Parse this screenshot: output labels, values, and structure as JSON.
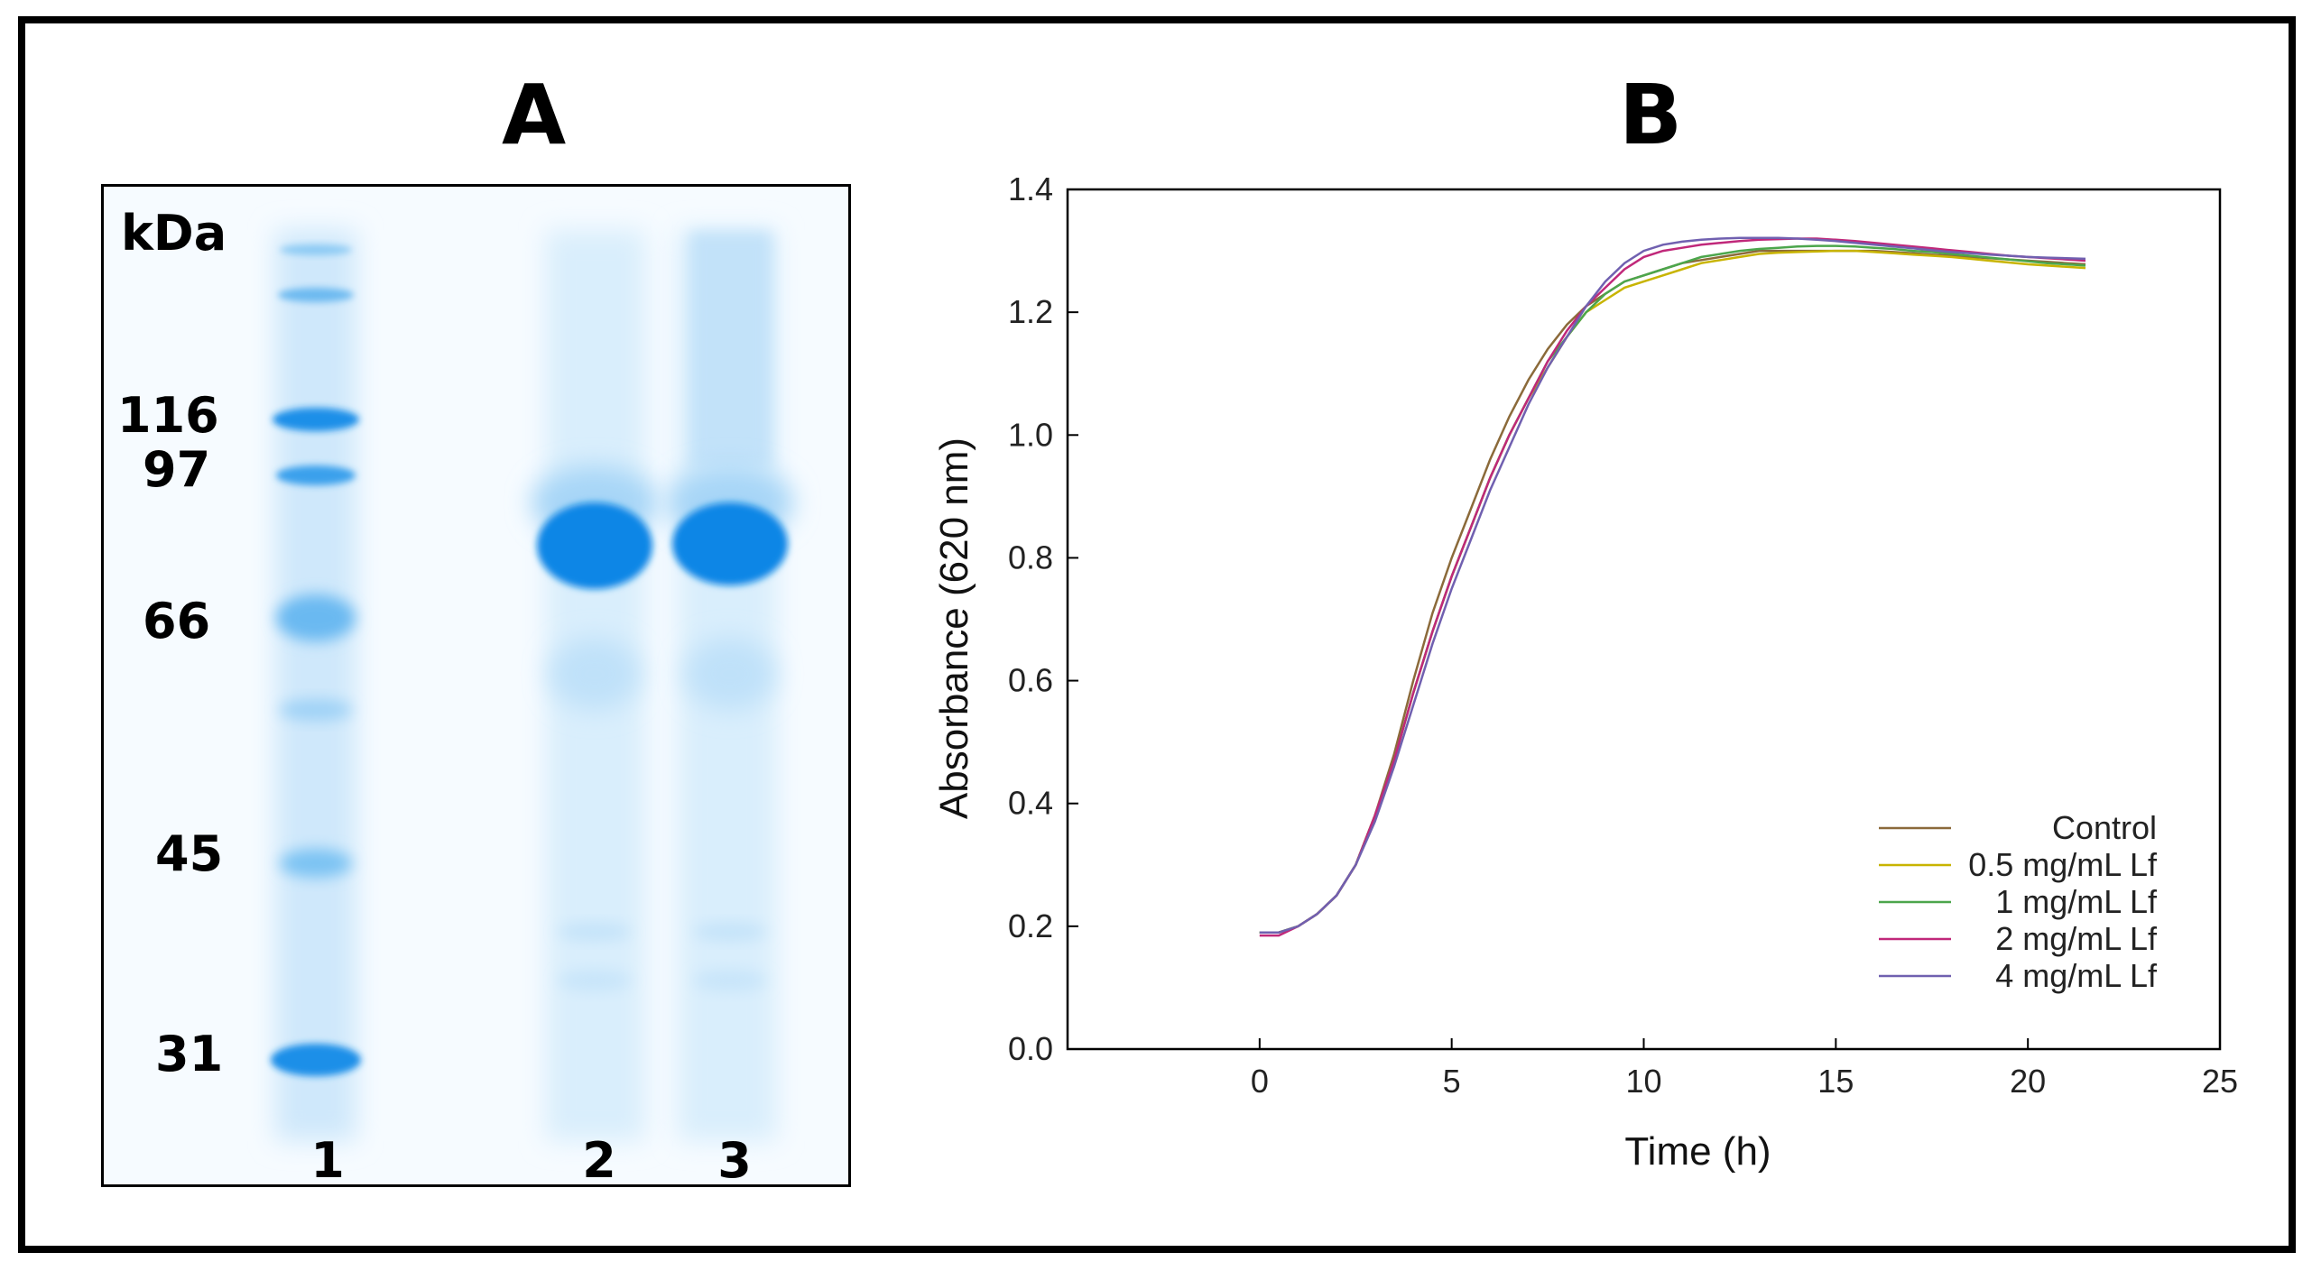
{
  "figure": {
    "panel_a_letter": "A",
    "panel_b_letter": "B"
  },
  "gel": {
    "unit_label": "kDa",
    "markers": [
      {
        "label": "116",
        "kda": 116
      },
      {
        "label": "97",
        "kda": 97
      },
      {
        "label": "66",
        "kda": 66
      },
      {
        "label": "45",
        "kda": 45
      },
      {
        "label": "31",
        "kda": 31
      }
    ],
    "lanes": [
      {
        "label": "1",
        "content": "marker"
      },
      {
        "label": "2",
        "content": "sample"
      },
      {
        "label": "3",
        "content": "sample"
      }
    ],
    "band_color": "#1a8fe8"
  },
  "chart_data": {
    "type": "line",
    "title": "",
    "xlabel": "Time (h)",
    "ylabel": "Absorbance (620 nm)",
    "xlim": [
      -5,
      25
    ],
    "ylim": [
      0.0,
      1.4
    ],
    "xticks": [
      0,
      5,
      10,
      15,
      20,
      25
    ],
    "yticks": [
      "0.0",
      "0.2",
      "0.4",
      "0.6",
      "0.8",
      "1.0",
      "1.2",
      "1.4"
    ],
    "legend_position": "bottom-right",
    "x": [
      0,
      0.5,
      1,
      1.5,
      2,
      2.5,
      3,
      3.5,
      4,
      4.5,
      5,
      5.5,
      6,
      6.5,
      7,
      7.5,
      8,
      8.5,
      9,
      9.5,
      10,
      10.5,
      11,
      11.5,
      12,
      12.5,
      13,
      13.5,
      14,
      14.5,
      15,
      15.5,
      16,
      16.5,
      17,
      17.5,
      18,
      18.5,
      19,
      19.5,
      20,
      20.5,
      21,
      21.5
    ],
    "series": [
      {
        "name": "Control",
        "color": "#8b6a3a",
        "values": [
          0.19,
          0.19,
          0.2,
          0.22,
          0.25,
          0.3,
          0.38,
          0.48,
          0.6,
          0.71,
          0.8,
          0.88,
          0.96,
          1.03,
          1.09,
          1.14,
          1.18,
          1.21,
          1.23,
          1.25,
          1.26,
          1.27,
          1.28,
          1.285,
          1.29,
          1.295,
          1.3,
          1.3,
          1.3,
          1.3,
          1.3,
          1.3,
          1.3,
          1.298,
          1.296,
          1.294,
          1.292,
          1.29,
          1.288,
          1.286,
          1.284,
          1.282,
          1.28,
          1.278
        ]
      },
      {
        "name": "0.5 mg/mL Lf",
        "color": "#c8b400",
        "values": [
          0.19,
          0.19,
          0.2,
          0.22,
          0.25,
          0.3,
          0.38,
          0.47,
          0.58,
          0.68,
          0.77,
          0.85,
          0.93,
          1.0,
          1.06,
          1.11,
          1.16,
          1.2,
          1.22,
          1.24,
          1.25,
          1.26,
          1.27,
          1.28,
          1.285,
          1.29,
          1.295,
          1.297,
          1.298,
          1.299,
          1.3,
          1.3,
          1.298,
          1.296,
          1.294,
          1.292,
          1.29,
          1.287,
          1.284,
          1.281,
          1.278,
          1.276,
          1.274,
          1.272
        ]
      },
      {
        "name": "1 mg/mL Lf",
        "color": "#4ca64c",
        "values": [
          0.19,
          0.19,
          0.2,
          0.22,
          0.25,
          0.3,
          0.38,
          0.47,
          0.58,
          0.68,
          0.77,
          0.85,
          0.93,
          1.0,
          1.06,
          1.12,
          1.16,
          1.2,
          1.23,
          1.25,
          1.26,
          1.27,
          1.28,
          1.29,
          1.295,
          1.3,
          1.303,
          1.305,
          1.307,
          1.308,
          1.308,
          1.307,
          1.305,
          1.303,
          1.3,
          1.298,
          1.295,
          1.292,
          1.289,
          1.286,
          1.283,
          1.28,
          1.278,
          1.276
        ]
      },
      {
        "name": "2 mg/mL Lf",
        "color": "#c0287a",
        "values": [
          0.185,
          0.185,
          0.2,
          0.22,
          0.25,
          0.3,
          0.38,
          0.47,
          0.58,
          0.68,
          0.77,
          0.85,
          0.93,
          1.0,
          1.06,
          1.12,
          1.17,
          1.21,
          1.24,
          1.27,
          1.29,
          1.3,
          1.305,
          1.31,
          1.313,
          1.316,
          1.318,
          1.319,
          1.32,
          1.32,
          1.318,
          1.316,
          1.313,
          1.31,
          1.307,
          1.304,
          1.301,
          1.298,
          1.295,
          1.292,
          1.29,
          1.288,
          1.286,
          1.284
        ]
      },
      {
        "name": "4 mg/mL Lf",
        "color": "#7060b0",
        "values": [
          0.19,
          0.19,
          0.2,
          0.22,
          0.25,
          0.3,
          0.37,
          0.46,
          0.56,
          0.66,
          0.75,
          0.83,
          0.91,
          0.98,
          1.05,
          1.11,
          1.16,
          1.21,
          1.25,
          1.28,
          1.3,
          1.31,
          1.315,
          1.318,
          1.32,
          1.321,
          1.321,
          1.321,
          1.32,
          1.318,
          1.316,
          1.313,
          1.31,
          1.307,
          1.304,
          1.301,
          1.298,
          1.296,
          1.294,
          1.292,
          1.29,
          1.289,
          1.288,
          1.287
        ]
      }
    ]
  }
}
